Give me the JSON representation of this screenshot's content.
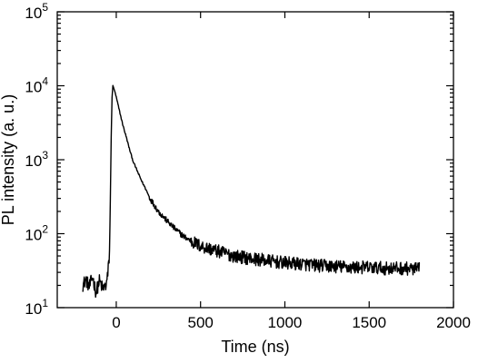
{
  "chart_data": {
    "type": "line",
    "xlabel": "Time (ns)",
    "ylabel": "PL intensity (a. u.)",
    "xlim": [
      -350,
      2000
    ],
    "ylim": [
      10,
      100000
    ],
    "yscale": "log",
    "grid": false,
    "legend": "none",
    "colors": {
      "line": "#000000",
      "axes": "#000000",
      "background": "#ffffff"
    },
    "x_ticks": [
      {
        "value": 0,
        "label": "0"
      },
      {
        "value": 500,
        "label": "500"
      },
      {
        "value": 1000,
        "label": "1000"
      },
      {
        "value": 1500,
        "label": "1500"
      },
      {
        "value": 2000,
        "label": "2000"
      }
    ],
    "y_ticks": [
      {
        "value": 10,
        "base": "10",
        "exp": "1"
      },
      {
        "value": 100,
        "base": "10",
        "exp": "2"
      },
      {
        "value": 1000,
        "base": "10",
        "exp": "3"
      },
      {
        "value": 10000,
        "base": "10",
        "exp": "4"
      },
      {
        "value": 100000,
        "base": "10",
        "exp": "5"
      }
    ],
    "series": [
      {
        "x": [
          -200,
          -180,
          -160,
          -140,
          -120,
          -100,
          -80,
          -60,
          -50,
          -40,
          -35,
          -30,
          -25,
          -20,
          -15,
          -10,
          0,
          10,
          25,
          40,
          60,
          80,
          100,
          125,
          150,
          175,
          200,
          250,
          300,
          350,
          400,
          450,
          500,
          600,
          700,
          800,
          900,
          1000,
          1100,
          1200,
          1300,
          1400,
          1500,
          1600,
          1700,
          1800
        ],
        "values": [
          20,
          24,
          19,
          26,
          16,
          23,
          18,
          20,
          28,
          55,
          300,
          2000,
          7000,
          10000,
          9300,
          8600,
          7000,
          5600,
          4000,
          2900,
          2000,
          1350,
          950,
          700,
          520,
          400,
          300,
          200,
          150,
          115,
          92,
          78,
          68,
          58,
          50,
          46,
          43,
          40,
          39,
          37,
          36,
          35,
          35,
          34,
          34,
          33
        ]
      }
    ]
  }
}
